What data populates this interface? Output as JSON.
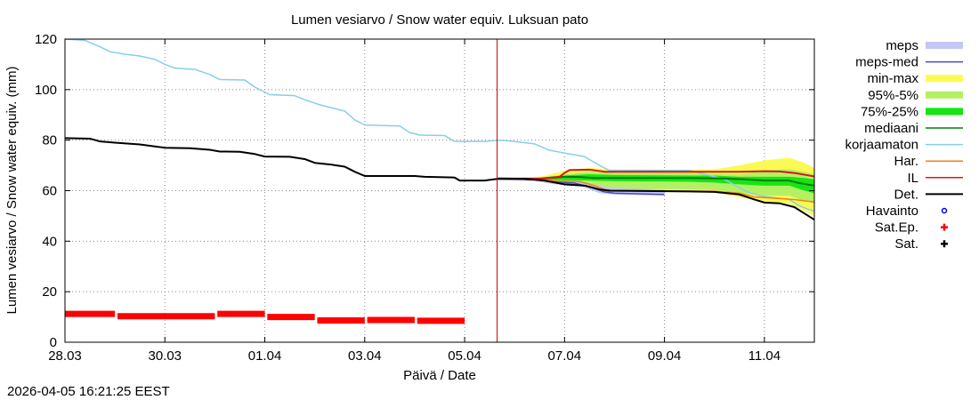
{
  "chart_data": {
    "type": "line",
    "title": "Lumen vesiarvo / Snow water equiv.  Luksuan pato",
    "xlabel": "Päivä / Date",
    "ylabel": "Lumen vesiarvo / Snow water equiv. (mm)",
    "timestamp": "2026-04-05 16:21:25 EEST",
    "xlim": [
      0,
      15
    ],
    "ylim": [
      0,
      120
    ],
    "x_unit": "days since 28.03",
    "x_ticks": [
      {
        "x": 0,
        "label": "28.03"
      },
      {
        "x": 2,
        "label": "30.03"
      },
      {
        "x": 4,
        "label": "01.04"
      },
      {
        "x": 6,
        "label": "03.04"
      },
      {
        "x": 8,
        "label": "05.04"
      },
      {
        "x": 10,
        "label": "07.04"
      },
      {
        "x": 12,
        "label": "09.04"
      },
      {
        "x": 14,
        "label": "11.04"
      }
    ],
    "y_ticks": [
      0,
      20,
      40,
      60,
      80,
      100,
      120
    ],
    "grid": true,
    "now_marker_x": 8.65,
    "colors": {
      "meps": "#c4c8f4",
      "meps_med": "#4a4ac8",
      "minmax": "#fafa55",
      "p95_5": "#b4f064",
      "p75_25": "#14e614",
      "median": "#0a780a",
      "korjaamaton": "#87ceeb",
      "har": "#f08214",
      "il": "#dc1414",
      "det": "#000000",
      "havainto": "#0000ff",
      "sat_ep": "#ff0000",
      "sat": "#000000",
      "now_line": "#cc0000",
      "grid": "#888888"
    },
    "legend": [
      {
        "key": "meps",
        "label": "meps",
        "style": "band"
      },
      {
        "key": "meps_med",
        "label": "meps-med",
        "style": "line"
      },
      {
        "key": "minmax",
        "label": "min-max",
        "style": "band"
      },
      {
        "key": "p95_5",
        "label": "95%-5%",
        "style": "band"
      },
      {
        "key": "p75_25",
        "label": "75%-25%",
        "style": "band"
      },
      {
        "key": "median",
        "label": "mediaani",
        "style": "line"
      },
      {
        "key": "korjaamaton",
        "label": "korjaamaton",
        "style": "line"
      },
      {
        "key": "har",
        "label": "Har.",
        "style": "line"
      },
      {
        "key": "il",
        "label": "IL",
        "style": "line"
      },
      {
        "key": "det",
        "label": "Det.",
        "style": "line"
      },
      {
        "key": "havainto",
        "label": "Havainto",
        "style": "circle"
      },
      {
        "key": "sat_ep",
        "label": "Sat.Ep.",
        "style": "plus"
      },
      {
        "key": "sat",
        "label": "Sat.",
        "style": "plus"
      }
    ],
    "series": [
      {
        "name": "korjaamaton",
        "points": [
          [
            0,
            120
          ],
          [
            0.4,
            119.5
          ],
          [
            0.7,
            117
          ],
          [
            0.9,
            115
          ],
          [
            1.2,
            114
          ],
          [
            1.5,
            113.3
          ],
          [
            1.8,
            112
          ],
          [
            2,
            110
          ],
          [
            2.2,
            108.5
          ],
          [
            2.6,
            108
          ],
          [
            2.9,
            106
          ],
          [
            3.1,
            104
          ],
          [
            3.6,
            103.8
          ],
          [
            3.8,
            101
          ],
          [
            4.1,
            98
          ],
          [
            4.6,
            97.6
          ],
          [
            4.8,
            96
          ],
          [
            5.1,
            94
          ],
          [
            5.3,
            93
          ],
          [
            5.6,
            91.5
          ],
          [
            5.8,
            88
          ],
          [
            6,
            86
          ],
          [
            6.7,
            85.6
          ],
          [
            6.9,
            83
          ],
          [
            7.1,
            82
          ],
          [
            7.6,
            81.8
          ],
          [
            7.8,
            79.5
          ],
          [
            8.4,
            79.5
          ],
          [
            8.7,
            80
          ],
          [
            9,
            79.5
          ],
          [
            9.4,
            78.5
          ],
          [
            9.7,
            76
          ],
          [
            10.1,
            74.5
          ],
          [
            10.4,
            73.5
          ],
          [
            10.7,
            70
          ],
          [
            10.9,
            68
          ],
          [
            12.5,
            68
          ],
          [
            12.8,
            66.5
          ],
          [
            13.2,
            64.5
          ],
          [
            13.6,
            60
          ],
          [
            13.9,
            58
          ],
          [
            14.5,
            56.5
          ],
          [
            14.7,
            54
          ],
          [
            14.9,
            52.5
          ],
          [
            15,
            52
          ]
        ]
      },
      {
        "name": "det",
        "points": [
          [
            0,
            80.8
          ],
          [
            0.5,
            80.6
          ],
          [
            0.7,
            79.5
          ],
          [
            1,
            79
          ],
          [
            1.5,
            78.3
          ],
          [
            1.8,
            77.5
          ],
          [
            2,
            77
          ],
          [
            2.5,
            76.8
          ],
          [
            2.9,
            76.2
          ],
          [
            3.1,
            75.5
          ],
          [
            3.5,
            75.4
          ],
          [
            3.8,
            74.5
          ],
          [
            4,
            73.5
          ],
          [
            4.5,
            73.4
          ],
          [
            4.8,
            72.5
          ],
          [
            5,
            71
          ],
          [
            5.3,
            70.4
          ],
          [
            5.6,
            69.5
          ],
          [
            5.8,
            67.5
          ],
          [
            6,
            65.8
          ],
          [
            7,
            65.8
          ],
          [
            7.2,
            65.5
          ],
          [
            7.8,
            65.2
          ],
          [
            7.9,
            64
          ],
          [
            8.4,
            64
          ],
          [
            8.7,
            64.8
          ],
          [
            9.2,
            64.7
          ],
          [
            9.6,
            64
          ],
          [
            10,
            62.5
          ],
          [
            10.4,
            62
          ],
          [
            10.7,
            60.5
          ],
          [
            10.9,
            60
          ],
          [
            12.5,
            59.7
          ],
          [
            13,
            59.5
          ],
          [
            13.5,
            58.5
          ],
          [
            13.8,
            56.5
          ],
          [
            14,
            55.3
          ],
          [
            14.3,
            55
          ],
          [
            14.6,
            53.5
          ],
          [
            14.8,
            51
          ],
          [
            15,
            48.5
          ]
        ]
      },
      {
        "name": "il",
        "points": [
          [
            8.65,
            64.8
          ],
          [
            9.5,
            64.8
          ],
          [
            9.9,
            65.5
          ],
          [
            10,
            67
          ],
          [
            10.1,
            68.2
          ],
          [
            10.5,
            68.3
          ],
          [
            10.8,
            67.5
          ],
          [
            13.5,
            67.5
          ],
          [
            14,
            67.7
          ],
          [
            14.3,
            67.6
          ],
          [
            14.6,
            67
          ],
          [
            14.9,
            66
          ],
          [
            15,
            65.6
          ]
        ]
      },
      {
        "name": "har",
        "points": [
          [
            8.65,
            64.6
          ],
          [
            9.5,
            64.5
          ],
          [
            9.9,
            63.8
          ],
          [
            10.3,
            63.6
          ],
          [
            10.6,
            62
          ],
          [
            10.8,
            60.5
          ],
          [
            11,
            60
          ],
          [
            13,
            59.8
          ],
          [
            13.5,
            59
          ],
          [
            13.8,
            57.5
          ],
          [
            14.2,
            57
          ],
          [
            14.6,
            56.5
          ],
          [
            15,
            55.5
          ]
        ]
      },
      {
        "name": "median",
        "points": [
          [
            8.65,
            64.8
          ],
          [
            9.5,
            64.7
          ],
          [
            9.8,
            65.2
          ],
          [
            10,
            65.5
          ],
          [
            10.3,
            65.4
          ],
          [
            10.6,
            65
          ],
          [
            10.9,
            65
          ],
          [
            12.5,
            65
          ],
          [
            13.2,
            64.8
          ],
          [
            13.6,
            64.5
          ],
          [
            14,
            64
          ],
          [
            14.5,
            64
          ],
          [
            14.7,
            63
          ],
          [
            15,
            62
          ]
        ]
      },
      {
        "name": "meps_med",
        "points": [
          [
            8.65,
            64.5
          ],
          [
            9.4,
            64.3
          ],
          [
            9.8,
            63.5
          ],
          [
            10.2,
            63
          ],
          [
            10.5,
            61.5
          ],
          [
            10.8,
            59.5
          ],
          [
            11,
            59
          ],
          [
            12,
            58.5
          ]
        ]
      }
    ],
    "bands": [
      {
        "name": "minmax",
        "points": [
          [
            8.65,
            64.9,
            64.5
          ],
          [
            9.3,
            65.2,
            64.2
          ],
          [
            9.6,
            65.8,
            63.5
          ],
          [
            10,
            68,
            62.5
          ],
          [
            10.5,
            69,
            61.5
          ],
          [
            10.9,
            68.5,
            59.8
          ],
          [
            12.5,
            68.3,
            59.7
          ],
          [
            13,
            68.5,
            59.3
          ],
          [
            13.5,
            70,
            57.5
          ],
          [
            14,
            72,
            55.5
          ],
          [
            14.5,
            73,
            55
          ],
          [
            14.8,
            71,
            52
          ],
          [
            15,
            69,
            50
          ]
        ]
      },
      {
        "name": "p95_5",
        "points": [
          [
            8.65,
            64.85,
            64.55
          ],
          [
            9.5,
            65,
            64.3
          ],
          [
            10,
            66.5,
            63.5
          ],
          [
            10.5,
            67.5,
            62.5
          ],
          [
            11,
            67,
            60.8
          ],
          [
            12.5,
            66.8,
            60.5
          ],
          [
            13,
            66.6,
            60.3
          ],
          [
            13.5,
            66.4,
            59
          ],
          [
            14,
            68,
            58
          ],
          [
            14.5,
            68.5,
            58
          ],
          [
            14.8,
            67.5,
            56
          ],
          [
            15,
            66.5,
            55
          ]
        ]
      },
      {
        "name": "p75_25",
        "points": [
          [
            8.65,
            64.8,
            64.6
          ],
          [
            9.5,
            64.9,
            64.5
          ],
          [
            10,
            66,
            64.2
          ],
          [
            10.5,
            66.5,
            64
          ],
          [
            11,
            66.2,
            63.8
          ],
          [
            12.5,
            66,
            63.5
          ],
          [
            13,
            66,
            63.2
          ],
          [
            13.5,
            65.5,
            62.5
          ],
          [
            14,
            65.5,
            62
          ],
          [
            14.5,
            65.5,
            62
          ],
          [
            14.8,
            65,
            60
          ],
          [
            15,
            64.5,
            59
          ]
        ]
      },
      {
        "name": "meps",
        "points": [
          [
            8.65,
            64.7,
            64.3
          ],
          [
            9.4,
            64.5,
            63.8
          ],
          [
            9.8,
            64,
            62.5
          ],
          [
            10.3,
            63.5,
            62
          ],
          [
            10.7,
            62,
            59
          ],
          [
            11,
            61,
            58.5
          ],
          [
            12,
            60.5,
            58
          ]
        ]
      }
    ],
    "observations": [
      {
        "name": "sat_ep",
        "points": [
          [
            0,
            11.2
          ],
          [
            1,
            11.2
          ],
          [
            1.05,
            10.3
          ],
          [
            3,
            10.3
          ],
          [
            3.05,
            11.2
          ],
          [
            4,
            11.2
          ],
          [
            4.05,
            10
          ],
          [
            5,
            10
          ],
          [
            5.05,
            8.6
          ],
          [
            6,
            8.6
          ],
          [
            6.05,
            8.8
          ],
          [
            7,
            8.8
          ],
          [
            7.05,
            8.5
          ],
          [
            8,
            8.5
          ]
        ]
      }
    ]
  }
}
